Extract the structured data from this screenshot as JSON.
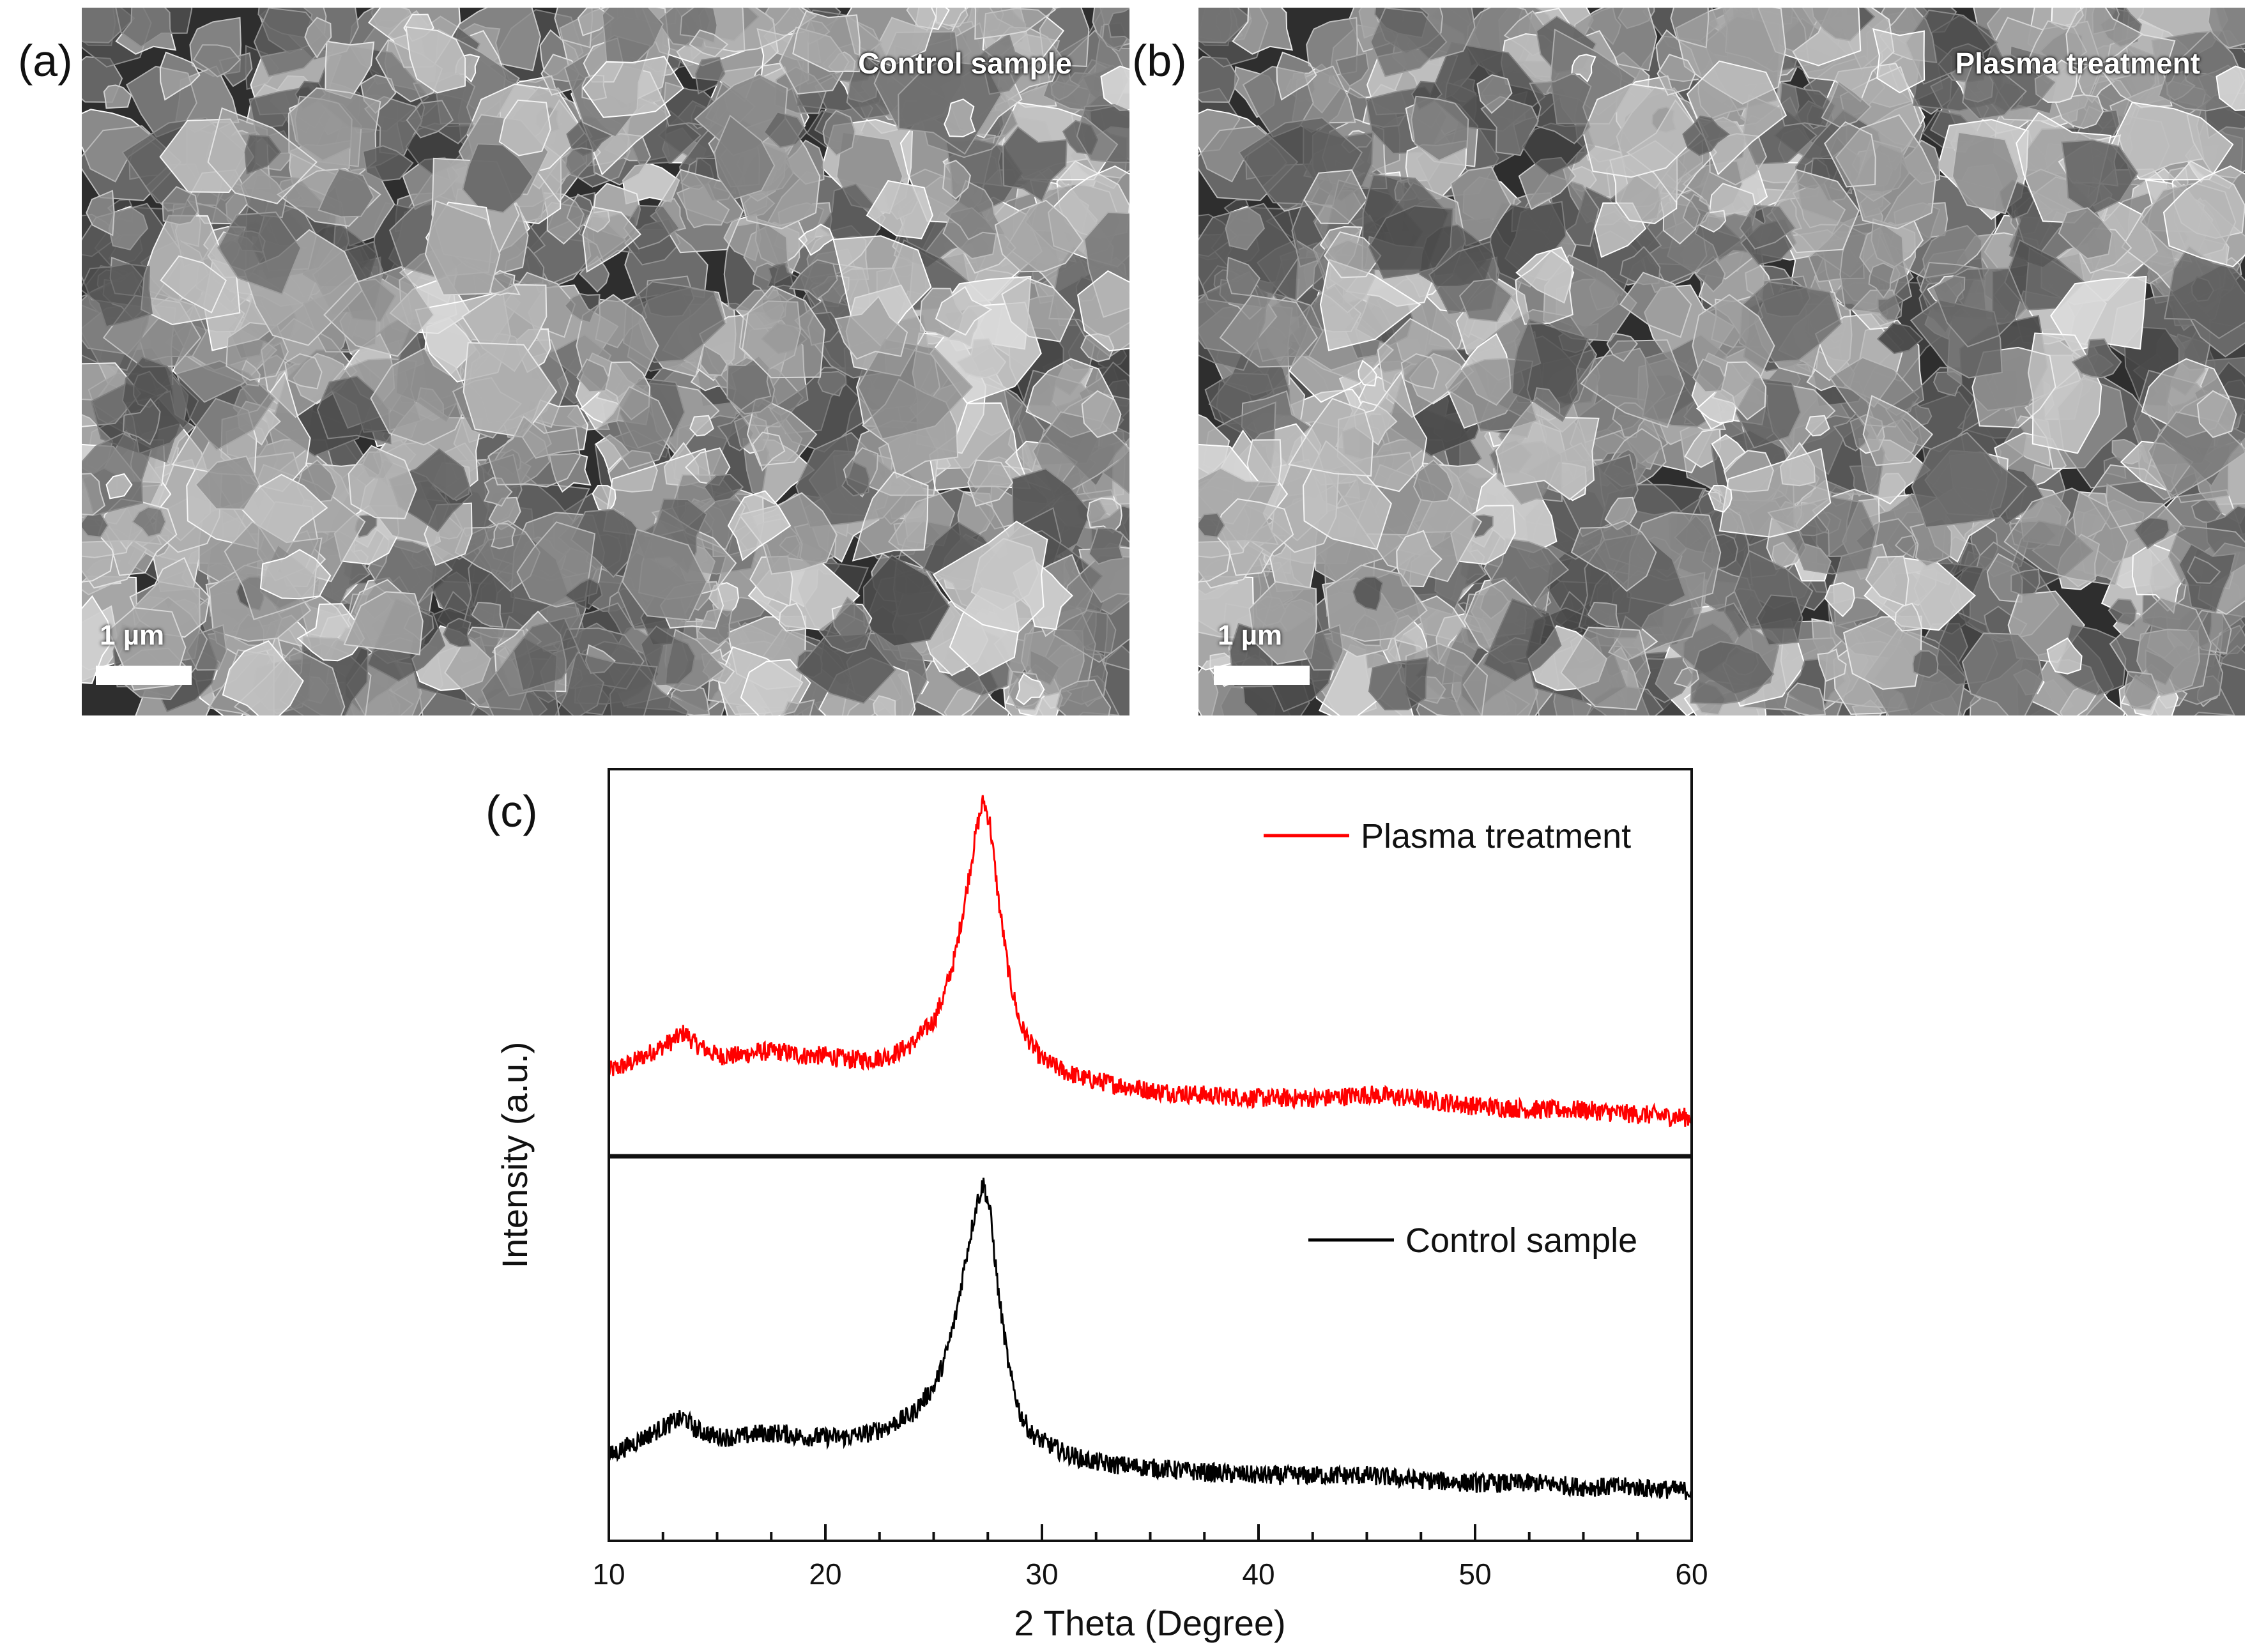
{
  "panels": {
    "a": {
      "label": "(a)",
      "title": "Control sample",
      "scale": "1 µm"
    },
    "b": {
      "label": "(b)",
      "title": "Plasma treatment",
      "scale": "1 µm"
    },
    "c": {
      "label": "(c)"
    }
  },
  "colors": {
    "plasma": "#ff0000",
    "control": "#000000",
    "sem_background": "#3a3a3a"
  },
  "chart_data": {
    "type": "line",
    "xlabel": "2 Theta (Degree)",
    "ylabel": "Intensity (a.u.)",
    "xlim": [
      10,
      60
    ],
    "xticks": [
      10,
      20,
      30,
      40,
      50,
      60
    ],
    "layout": "two vertically stacked panels sharing the x-axis",
    "ylim": [
      0,
      1
    ],
    "grid": false,
    "legend_placement": "top-right of each panel",
    "series": [
      {
        "name": "Plasma treatment",
        "panel": "top",
        "color": "#ff0000",
        "x": [
          10,
          11,
          12,
          13,
          13.5,
          14,
          15,
          16,
          17,
          18,
          19,
          20,
          21,
          22,
          23,
          24,
          25,
          25.5,
          26,
          26.5,
          27,
          27.3,
          27.6,
          28,
          28.5,
          29,
          29.5,
          30,
          31,
          32,
          33,
          35,
          37,
          40,
          43,
          45,
          47,
          50,
          53,
          55,
          57,
          60
        ],
        "y": [
          0.22,
          0.24,
          0.27,
          0.3,
          0.32,
          0.29,
          0.26,
          0.26,
          0.27,
          0.27,
          0.26,
          0.26,
          0.25,
          0.25,
          0.26,
          0.29,
          0.35,
          0.42,
          0.52,
          0.68,
          0.85,
          0.92,
          0.86,
          0.66,
          0.46,
          0.34,
          0.29,
          0.25,
          0.22,
          0.2,
          0.19,
          0.17,
          0.16,
          0.15,
          0.15,
          0.16,
          0.15,
          0.13,
          0.12,
          0.12,
          0.11,
          0.1
        ]
      },
      {
        "name": "Control sample",
        "panel": "bottom",
        "color": "#000000",
        "x": [
          10,
          11,
          12,
          13,
          13.5,
          14,
          15,
          16,
          17,
          18,
          19,
          20,
          21,
          22,
          23,
          24,
          25,
          25.5,
          26,
          26.5,
          27,
          27.3,
          27.6,
          28,
          28.5,
          29,
          29.5,
          30,
          31,
          32,
          33,
          35,
          37,
          40,
          43,
          45,
          47,
          50,
          53,
          55,
          57,
          60
        ],
        "y": [
          0.22,
          0.25,
          0.28,
          0.31,
          0.32,
          0.29,
          0.27,
          0.27,
          0.28,
          0.28,
          0.27,
          0.27,
          0.27,
          0.28,
          0.3,
          0.33,
          0.4,
          0.47,
          0.58,
          0.74,
          0.88,
          0.93,
          0.86,
          0.64,
          0.44,
          0.33,
          0.28,
          0.26,
          0.23,
          0.21,
          0.2,
          0.19,
          0.18,
          0.17,
          0.17,
          0.17,
          0.16,
          0.15,
          0.15,
          0.14,
          0.14,
          0.13
        ]
      }
    ]
  }
}
